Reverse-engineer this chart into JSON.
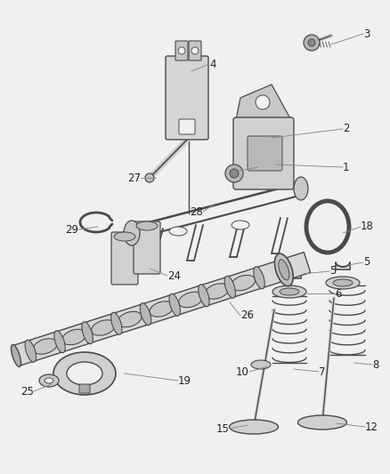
{
  "bg_color": "#f0f0f0",
  "line_color": "#4a4a4a",
  "leader_color": "#888888",
  "text_color": "#222222",
  "fig_w": 4.38,
  "fig_h": 5.33,
  "dpi": 100
}
